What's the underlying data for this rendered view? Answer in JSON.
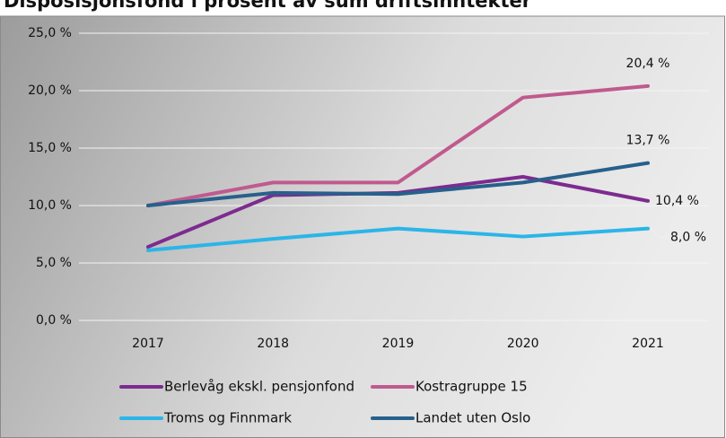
{
  "chart_data": {
    "type": "line",
    "title": "Disposisjonsfond i prosent av sum driftsinntekter",
    "categories": [
      "2017",
      "2018",
      "2019",
      "2020",
      "2021"
    ],
    "series": [
      {
        "name": "Berlevåg ekskl. pensjonfond",
        "color": "#7d2b8f",
        "values": [
          6.4,
          10.9,
          11.1,
          12.5,
          10.4
        ],
        "value_labels": [
          null,
          null,
          null,
          null,
          "10,4 %"
        ]
      },
      {
        "name": "Kostragruppe 15",
        "color": "#c05a8e",
        "values": [
          10.0,
          12.0,
          12.0,
          19.4,
          20.4
        ],
        "value_labels": [
          null,
          null,
          null,
          null,
          "20,4 %"
        ]
      },
      {
        "name": "Troms og Finnmark",
        "color": "#2bb5e8",
        "values": [
          6.1,
          7.1,
          8.0,
          7.3,
          8.0
        ],
        "value_labels": [
          null,
          null,
          null,
          null,
          "8,0 %"
        ]
      },
      {
        "name": "Landet uten Oslo",
        "color": "#27608c",
        "values": [
          10.0,
          11.1,
          11.0,
          12.0,
          13.7
        ],
        "value_labels": [
          null,
          null,
          null,
          null,
          "13,7 %"
        ]
      }
    ],
    "ylim": [
      0,
      25
    ],
    "yticks": [
      {
        "value": 0,
        "label": "0,0 %"
      },
      {
        "value": 5,
        "label": "5,0 %"
      },
      {
        "value": 10,
        "label": "10,0 %"
      },
      {
        "value": 15,
        "label": "15,0 %"
      },
      {
        "value": 20,
        "label": "20,0 %"
      },
      {
        "value": 25,
        "label": "25,0 %"
      }
    ],
    "grid": true
  }
}
